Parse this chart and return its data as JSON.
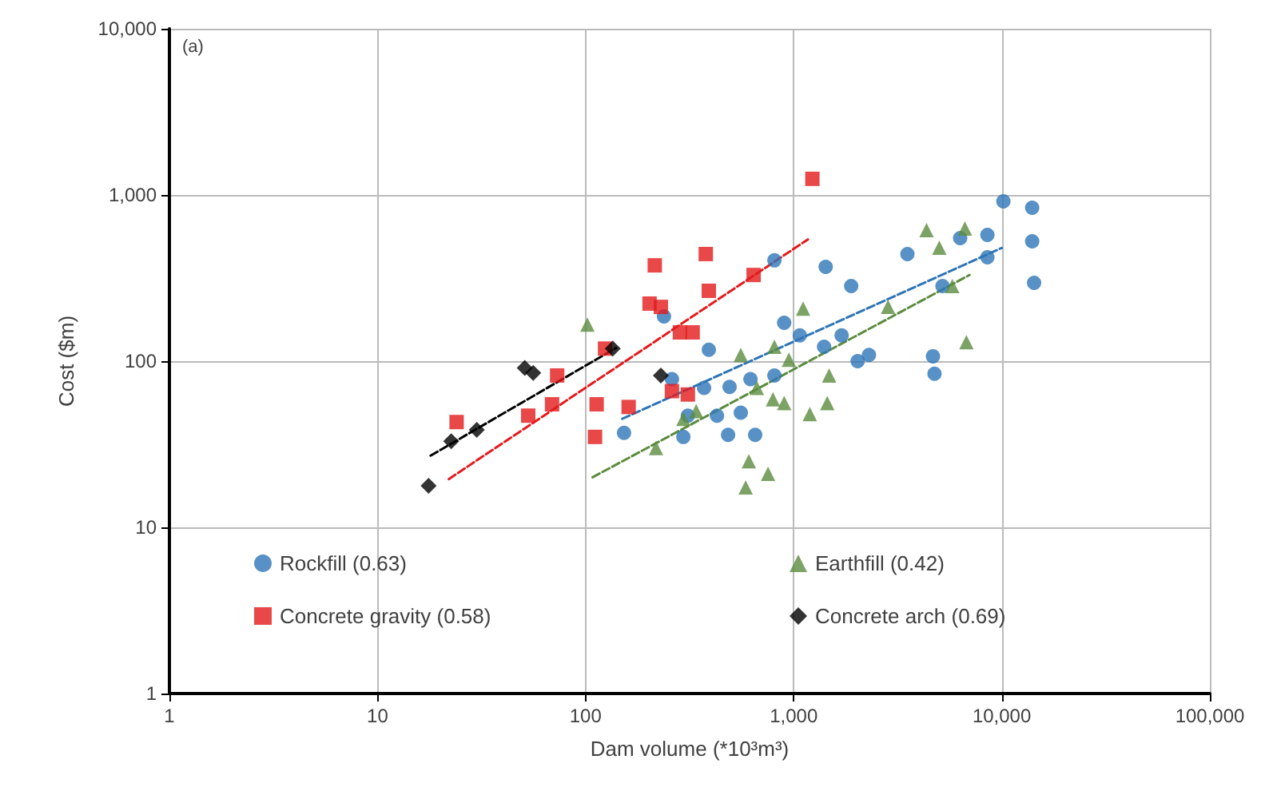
{
  "chart_data": {
    "type": "scatter",
    "xlabel": "Dam volume (*10³m³)",
    "ylabel": "Cost ($m)",
    "annotations": [
      "(a)"
    ],
    "log": "xy",
    "grid": true,
    "legend": "bottom",
    "xlim": [
      1,
      100000
    ],
    "xticks": [
      1,
      10,
      100,
      {
        "value": 1000,
        "label": "1,000"
      },
      {
        "value": 10000,
        "label": "10,000"
      },
      {
        "value": 100000,
        "label": "100,000"
      }
    ],
    "ylim": [
      1,
      10000
    ],
    "yticks": [
      1,
      10,
      100,
      {
        "value": 1000,
        "label": "1,000"
      },
      {
        "value": 10000,
        "label": "10,000"
      }
    ],
    "series": [
      {
        "name": "Rockfill (0.63)",
        "color": "#2e75b6",
        "marker": "circle",
        "x": [
          10180,
          14000,
          8530,
          6310,
          14000,
          8530,
          3520,
          14300,
          5190,
          2300,
          4670,
          4750,
          808,
          1425,
          1890,
          900,
          1070,
          1400,
          1700,
          2030,
          391,
          238,
          808,
          620,
          492,
          260,
          371,
          428,
          557,
          484,
          653,
          295,
          153,
          310
        ],
        "values": [
          916,
          838,
          575,
          550,
          526,
          422,
          441,
          296,
          283,
          109,
          107,
          84,
          404,
          369,
          283,
          170,
          143,
          122,
          143,
          100,
          117,
          186,
          82,
          78,
          70,
          78,
          69,
          47,
          49,
          36,
          36,
          35,
          37,
          47
        ]
      },
      {
        "name": "Earthfill (0.42)",
        "color": "#5b8c3e",
        "marker": "triangle",
        "x": [
          102,
          1110,
          557,
          808,
          948,
          1480,
          1450,
          1195,
          665,
          795,
          900,
          295,
          340,
          218,
          609,
          753,
          588,
          4350,
          5010,
          6650,
          2840,
          6760,
          5780
        ],
        "values": [
          166,
          207,
          109,
          122,
          102,
          82,
          56,
          48,
          69,
          59,
          56,
          45,
          50,
          30,
          25,
          21,
          17.4,
          614,
          482,
          628,
          212,
          130,
          283
        ]
      },
      {
        "name": "Concrete gravity (0.58)",
        "color": "#e41a1c",
        "marker": "square",
        "x": [
          1230,
          215,
          378,
          642,
          391,
          203,
          230,
          284,
          327,
          124,
          73,
          260,
          310,
          113,
          161,
          69,
          53,
          111,
          24
        ],
        "values": [
          1250,
          377,
          441,
          330,
          265,
          222,
          212,
          149,
          149,
          119,
          82,
          66,
          63,
          55,
          53,
          55,
          47,
          35,
          43
        ]
      },
      {
        "name": "Concrete arch (0.69)",
        "color": "#000000",
        "marker": "diamond",
        "x": [
          17.6,
          22.6,
          30,
          51,
          56,
          135,
          230
        ],
        "values": [
          17.8,
          33,
          38.6,
          91,
          85,
          119,
          82
        ]
      },
      {
        "type": "line",
        "color": "#2e75b6",
        "line_style": "dashed",
        "marker": "none",
        "x": [
          150,
          10000
        ],
        "values": [
          45,
          480
        ]
      },
      {
        "type": "line",
        "color": "#5b8c3e",
        "line_style": "dashed",
        "marker": "none",
        "x": [
          108,
          7000
        ],
        "values": [
          20,
          330
        ]
      },
      {
        "type": "line",
        "color": "#e41a1c",
        "line_style": "dashed",
        "marker": "none",
        "x": [
          22,
          1170
        ],
        "values": [
          19.5,
          540
        ]
      },
      {
        "type": "line",
        "color": "#000000",
        "line_style": "dashed",
        "marker": "none",
        "x": [
          18,
          140
        ],
        "values": [
          27,
          120
        ]
      }
    ]
  }
}
